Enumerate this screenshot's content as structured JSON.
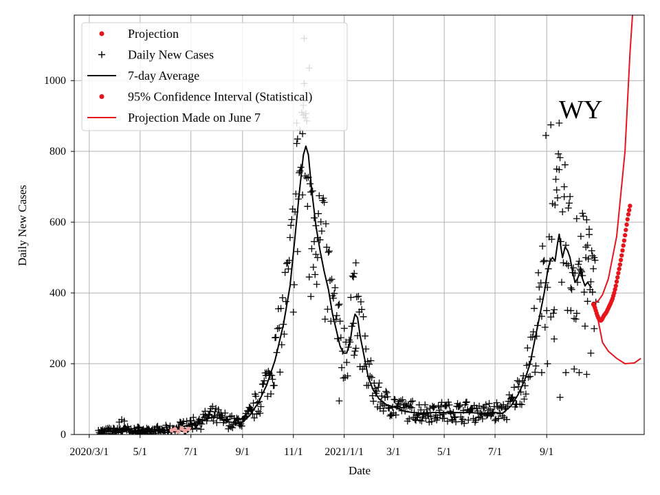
{
  "chart_data": {
    "type": "scatter",
    "title": "",
    "xlabel": "Date",
    "ylabel": "Daily New Cases",
    "annotation": "WY",
    "grid": true,
    "legend_placement": "top-left",
    "ylim": [
      0,
      1185
    ],
    "xlim": [
      "2020-02-12",
      "2021-12-27"
    ],
    "x_ticks": [
      {
        "date": "2020-03-01",
        "label": "2020/3/1"
      },
      {
        "date": "2020-05-01",
        "label": "5/1"
      },
      {
        "date": "2020-07-01",
        "label": "7/1"
      },
      {
        "date": "2020-09-01",
        "label": "9/1"
      },
      {
        "date": "2020-11-01",
        "label": "11/1"
      },
      {
        "date": "2021-01-01",
        "label": "2021/1/1"
      },
      {
        "date": "2021-03-01",
        "label": "3/1"
      },
      {
        "date": "2021-05-01",
        "label": "5/1"
      },
      {
        "date": "2021-07-01",
        "label": "7/1"
      },
      {
        "date": "2021-09-01",
        "label": "9/1"
      }
    ],
    "y_ticks": [
      0,
      200,
      400,
      600,
      800,
      1000
    ],
    "legend": [
      {
        "label": "Projection",
        "kind": "dot",
        "color": "#e8141c"
      },
      {
        "label": "Daily New Cases",
        "kind": "plus",
        "color": "#000000"
      },
      {
        "label": "7-day Average",
        "kind": "line",
        "color": "#000000"
      },
      {
        "label": "95% Confidence Interval (Statistical)",
        "kind": "dot",
        "color": "#e8141c"
      },
      {
        "label": "Projection Made on June 7",
        "kind": "line",
        "color": "#e8141c"
      }
    ],
    "series": [
      {
        "name": "7-day Average",
        "kind": "line",
        "color": "#000000",
        "points": [
          [
            "2020-03-14",
            5
          ],
          [
            "2020-03-28",
            10
          ],
          [
            "2020-04-11",
            12
          ],
          [
            "2020-04-25",
            10
          ],
          [
            "2020-05-09",
            8
          ],
          [
            "2020-05-23",
            10
          ],
          [
            "2020-06-06",
            12
          ],
          [
            "2020-06-20",
            22
          ],
          [
            "2020-07-04",
            30
          ],
          [
            "2020-07-18",
            42
          ],
          [
            "2020-07-28",
            50
          ],
          [
            "2020-08-05",
            45
          ],
          [
            "2020-08-15",
            36
          ],
          [
            "2020-08-25",
            32
          ],
          [
            "2020-09-01",
            35
          ],
          [
            "2020-09-10",
            55
          ],
          [
            "2020-09-20",
            90
          ],
          [
            "2020-09-30",
            140
          ],
          [
            "2020-10-10",
            210
          ],
          [
            "2020-10-20",
            310
          ],
          [
            "2020-10-28",
            420
          ],
          [
            "2020-11-03",
            560
          ],
          [
            "2020-11-08",
            680
          ],
          [
            "2020-11-13",
            790
          ],
          [
            "2020-11-16",
            815
          ],
          [
            "2020-11-19",
            790
          ],
          [
            "2020-11-23",
            690
          ],
          [
            "2020-11-28",
            590
          ],
          [
            "2020-12-03",
            520
          ],
          [
            "2020-12-08",
            460
          ],
          [
            "2020-12-13",
            410
          ],
          [
            "2020-12-18",
            340
          ],
          [
            "2020-12-23",
            290
          ],
          [
            "2020-12-27",
            250
          ],
          [
            "2020-12-31",
            230
          ],
          [
            "2021-01-04",
            230
          ],
          [
            "2021-01-08",
            260
          ],
          [
            "2021-01-11",
            310
          ],
          [
            "2021-01-14",
            340
          ],
          [
            "2021-01-17",
            330
          ],
          [
            "2021-01-20",
            280
          ],
          [
            "2021-01-25",
            220
          ],
          [
            "2021-01-30",
            160
          ],
          [
            "2021-02-05",
            125
          ],
          [
            "2021-02-12",
            100
          ],
          [
            "2021-02-20",
            85
          ],
          [
            "2021-03-01",
            78
          ],
          [
            "2021-03-15",
            65
          ],
          [
            "2021-04-01",
            60
          ],
          [
            "2021-04-15",
            62
          ],
          [
            "2021-05-01",
            62
          ],
          [
            "2021-05-15",
            62
          ],
          [
            "2021-06-01",
            62
          ],
          [
            "2021-06-15",
            60
          ],
          [
            "2021-06-25",
            60
          ],
          [
            "2021-07-01",
            62
          ],
          [
            "2021-07-10",
            60
          ],
          [
            "2021-07-20",
            80
          ],
          [
            "2021-07-28",
            110
          ],
          [
            "2021-08-05",
            150
          ],
          [
            "2021-08-12",
            200
          ],
          [
            "2021-08-18",
            270
          ],
          [
            "2021-08-24",
            340
          ],
          [
            "2021-08-29",
            400
          ],
          [
            "2021-09-02",
            460
          ],
          [
            "2021-09-05",
            490
          ],
          [
            "2021-09-08",
            500
          ],
          [
            "2021-09-11",
            490
          ],
          [
            "2021-09-14",
            540
          ],
          [
            "2021-09-16",
            566
          ],
          [
            "2021-09-18",
            530
          ],
          [
            "2021-09-20",
            500
          ],
          [
            "2021-09-23",
            530
          ],
          [
            "2021-09-26",
            520
          ],
          [
            "2021-09-29",
            500
          ],
          [
            "2021-10-02",
            460
          ],
          [
            "2021-10-05",
            430
          ],
          [
            "2021-10-08",
            440
          ],
          [
            "2021-10-11",
            460
          ],
          [
            "2021-10-14",
            440
          ],
          [
            "2021-10-17",
            420
          ],
          [
            "2021-10-20",
            430
          ],
          [
            "2021-10-23",
            420
          ],
          [
            "2021-10-25",
            415
          ]
        ]
      },
      {
        "name": "Projection Made on June 7",
        "kind": "line",
        "color": "#e8141c",
        "points": [
          [
            "2021-10-27",
            370
          ],
          [
            "2021-11-02",
            378
          ],
          [
            "2021-11-07",
            395
          ],
          [
            "2021-11-14",
            440
          ],
          [
            "2021-11-24",
            560
          ],
          [
            "2021-12-04",
            800
          ],
          [
            "2021-12-10",
            1080
          ],
          [
            "2021-12-13",
            1185
          ]
        ]
      },
      {
        "name": "Projection Made on June 7",
        "kind": "line",
        "color": "#e8141c",
        "points": [
          [
            "2021-10-27",
            360
          ],
          [
            "2021-11-02",
            320
          ],
          [
            "2021-11-07",
            260
          ],
          [
            "2021-11-14",
            235
          ],
          [
            "2021-11-24",
            215
          ],
          [
            "2021-12-04",
            200
          ],
          [
            "2021-12-15",
            202
          ],
          [
            "2021-12-23",
            215
          ]
        ]
      },
      {
        "name": "Projection",
        "kind": "dots",
        "color": "#e8141c",
        "points": [
          [
            "2021-10-27",
            368
          ],
          [
            "2021-10-28",
            364
          ],
          [
            "2021-10-29",
            358
          ],
          [
            "2021-10-30",
            350
          ],
          [
            "2021-10-31",
            342
          ],
          [
            "2021-11-01",
            335
          ],
          [
            "2021-11-02",
            330
          ],
          [
            "2021-11-03",
            326
          ],
          [
            "2021-11-04",
            323
          ],
          [
            "2021-11-05",
            322
          ],
          [
            "2021-11-06",
            324
          ],
          [
            "2021-11-07",
            328
          ],
          [
            "2021-11-08",
            333
          ],
          [
            "2021-11-09",
            337
          ],
          [
            "2021-11-10",
            340
          ],
          [
            "2021-11-11",
            343
          ],
          [
            "2021-11-12",
            347
          ],
          [
            "2021-11-13",
            352
          ],
          [
            "2021-11-14",
            357
          ],
          [
            "2021-11-15",
            362
          ],
          [
            "2021-11-16",
            367
          ],
          [
            "2021-11-17",
            372
          ],
          [
            "2021-11-18",
            378
          ],
          [
            "2021-11-19",
            384
          ],
          [
            "2021-11-20",
            392
          ],
          [
            "2021-11-21",
            400
          ],
          [
            "2021-11-22",
            410
          ],
          [
            "2021-11-23",
            420
          ],
          [
            "2021-11-24",
            432
          ],
          [
            "2021-11-25",
            444
          ],
          [
            "2021-11-26",
            456
          ],
          [
            "2021-11-27",
            468
          ],
          [
            "2021-11-28",
            480
          ],
          [
            "2021-11-29",
            493
          ],
          [
            "2021-11-30",
            506
          ],
          [
            "2021-12-01",
            520
          ],
          [
            "2021-12-02",
            534
          ],
          [
            "2021-12-03",
            548
          ],
          [
            "2021-12-04",
            563
          ],
          [
            "2021-12-05",
            578
          ],
          [
            "2021-12-06",
            593
          ],
          [
            "2021-12-07",
            608
          ],
          [
            "2021-12-08",
            622
          ],
          [
            "2021-12-09",
            634
          ],
          [
            "2021-12-10",
            646
          ]
        ]
      },
      {
        "name": "Projection",
        "kind": "dots",
        "color": "#f4a3a3",
        "points": [
          [
            "2020-06-08",
            12
          ],
          [
            "2020-06-12",
            15
          ],
          [
            "2020-06-16",
            8
          ],
          [
            "2020-06-20",
            18
          ],
          [
            "2020-06-24",
            10
          ],
          [
            "2020-06-28",
            16
          ]
        ]
      },
      {
        "name": "Daily New Cases",
        "kind": "plus",
        "color": "#000000",
        "seed": 7,
        "noise_low": 0.35,
        "noise_high": 0.45,
        "extra_points": [
          [
            "2020-04-06",
            35
          ],
          [
            "2020-04-09",
            42
          ],
          [
            "2020-04-12",
            38
          ],
          [
            "2020-11-05",
            880
          ],
          [
            "2020-11-06",
            835
          ],
          [
            "2020-11-09",
            860
          ],
          [
            "2020-11-12",
            850
          ],
          [
            "2020-11-14",
            992
          ],
          [
            "2020-11-13",
            930
          ],
          [
            "2020-11-15",
            895
          ],
          [
            "2020-11-17",
            725
          ],
          [
            "2020-11-20",
            445
          ],
          [
            "2020-11-22",
            390
          ],
          [
            "2020-11-26",
            545
          ],
          [
            "2020-11-28",
            590
          ],
          [
            "2020-11-30",
            500
          ],
          [
            "2021-01-15",
            485
          ],
          [
            "2021-01-13",
            455
          ],
          [
            "2021-01-12",
            445
          ],
          [
            "2020-12-26",
            95
          ],
          [
            "2021-08-31",
            845
          ],
          [
            "2021-09-06",
            875
          ],
          [
            "2021-09-16",
            880
          ],
          [
            "2021-09-13",
            750
          ],
          [
            "2021-09-22",
            700
          ],
          [
            "2021-09-27",
            640
          ],
          [
            "2021-09-10",
            270
          ],
          [
            "2021-09-17",
            105
          ],
          [
            "2021-09-24",
            175
          ],
          [
            "2021-10-04",
            185
          ],
          [
            "2021-10-10",
            175
          ],
          [
            "2021-10-19",
            170
          ],
          [
            "2021-10-24",
            230
          ],
          [
            "2021-10-22",
            580
          ],
          [
            "2021-10-20",
            535
          ],
          [
            "2021-10-14",
            625
          ],
          [
            "2021-10-07",
            610
          ],
          [
            "2021-09-02",
            200
          ],
          [
            "2021-08-26",
            175
          ],
          [
            "2021-10-28",
            500
          ],
          [
            "2021-10-26",
            505
          ],
          [
            "2021-10-18",
            500
          ],
          [
            "2021-10-12",
            560
          ],
          [
            "2021-09-30",
            350
          ]
        ]
      }
    ]
  }
}
